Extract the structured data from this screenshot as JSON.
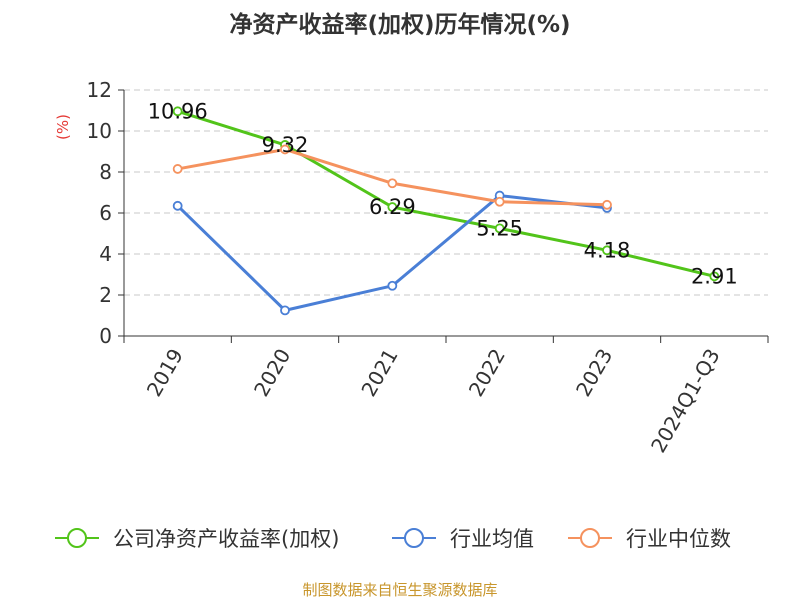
{
  "chart_data": {
    "type": "line",
    "title": "净资产收益率(加权)历年情况(%)",
    "ylabel": "(%)",
    "xlabel": "",
    "categories": [
      "2019",
      "2020",
      "2021",
      "2022",
      "2023",
      "2024Q1-Q3"
    ],
    "ylim": [
      0,
      12
    ],
    "yticks": [
      0,
      2,
      4,
      6,
      8,
      10,
      12
    ],
    "grid": true,
    "legend_position": "bottom",
    "series": [
      {
        "name": "公司净资产收益率(加权)",
        "color": "#52c41a",
        "values": [
          10.96,
          9.32,
          6.29,
          5.25,
          4.18,
          2.91
        ],
        "labels": [
          "10.96",
          "9.32",
          "6.29",
          "5.25",
          "4.18",
          "2.91"
        ],
        "show_labels": true
      },
      {
        "name": "行业均值",
        "color": "#4a7fd6",
        "values": [
          6.35,
          1.25,
          2.45,
          6.85,
          6.25,
          null
        ],
        "show_labels": false
      },
      {
        "name": "行业中位数",
        "color": "#f5925e",
        "values": [
          8.15,
          9.1,
          7.45,
          6.55,
          6.4,
          null
        ],
        "show_labels": false
      }
    ]
  },
  "source": "制图数据来自恒生聚源数据库"
}
